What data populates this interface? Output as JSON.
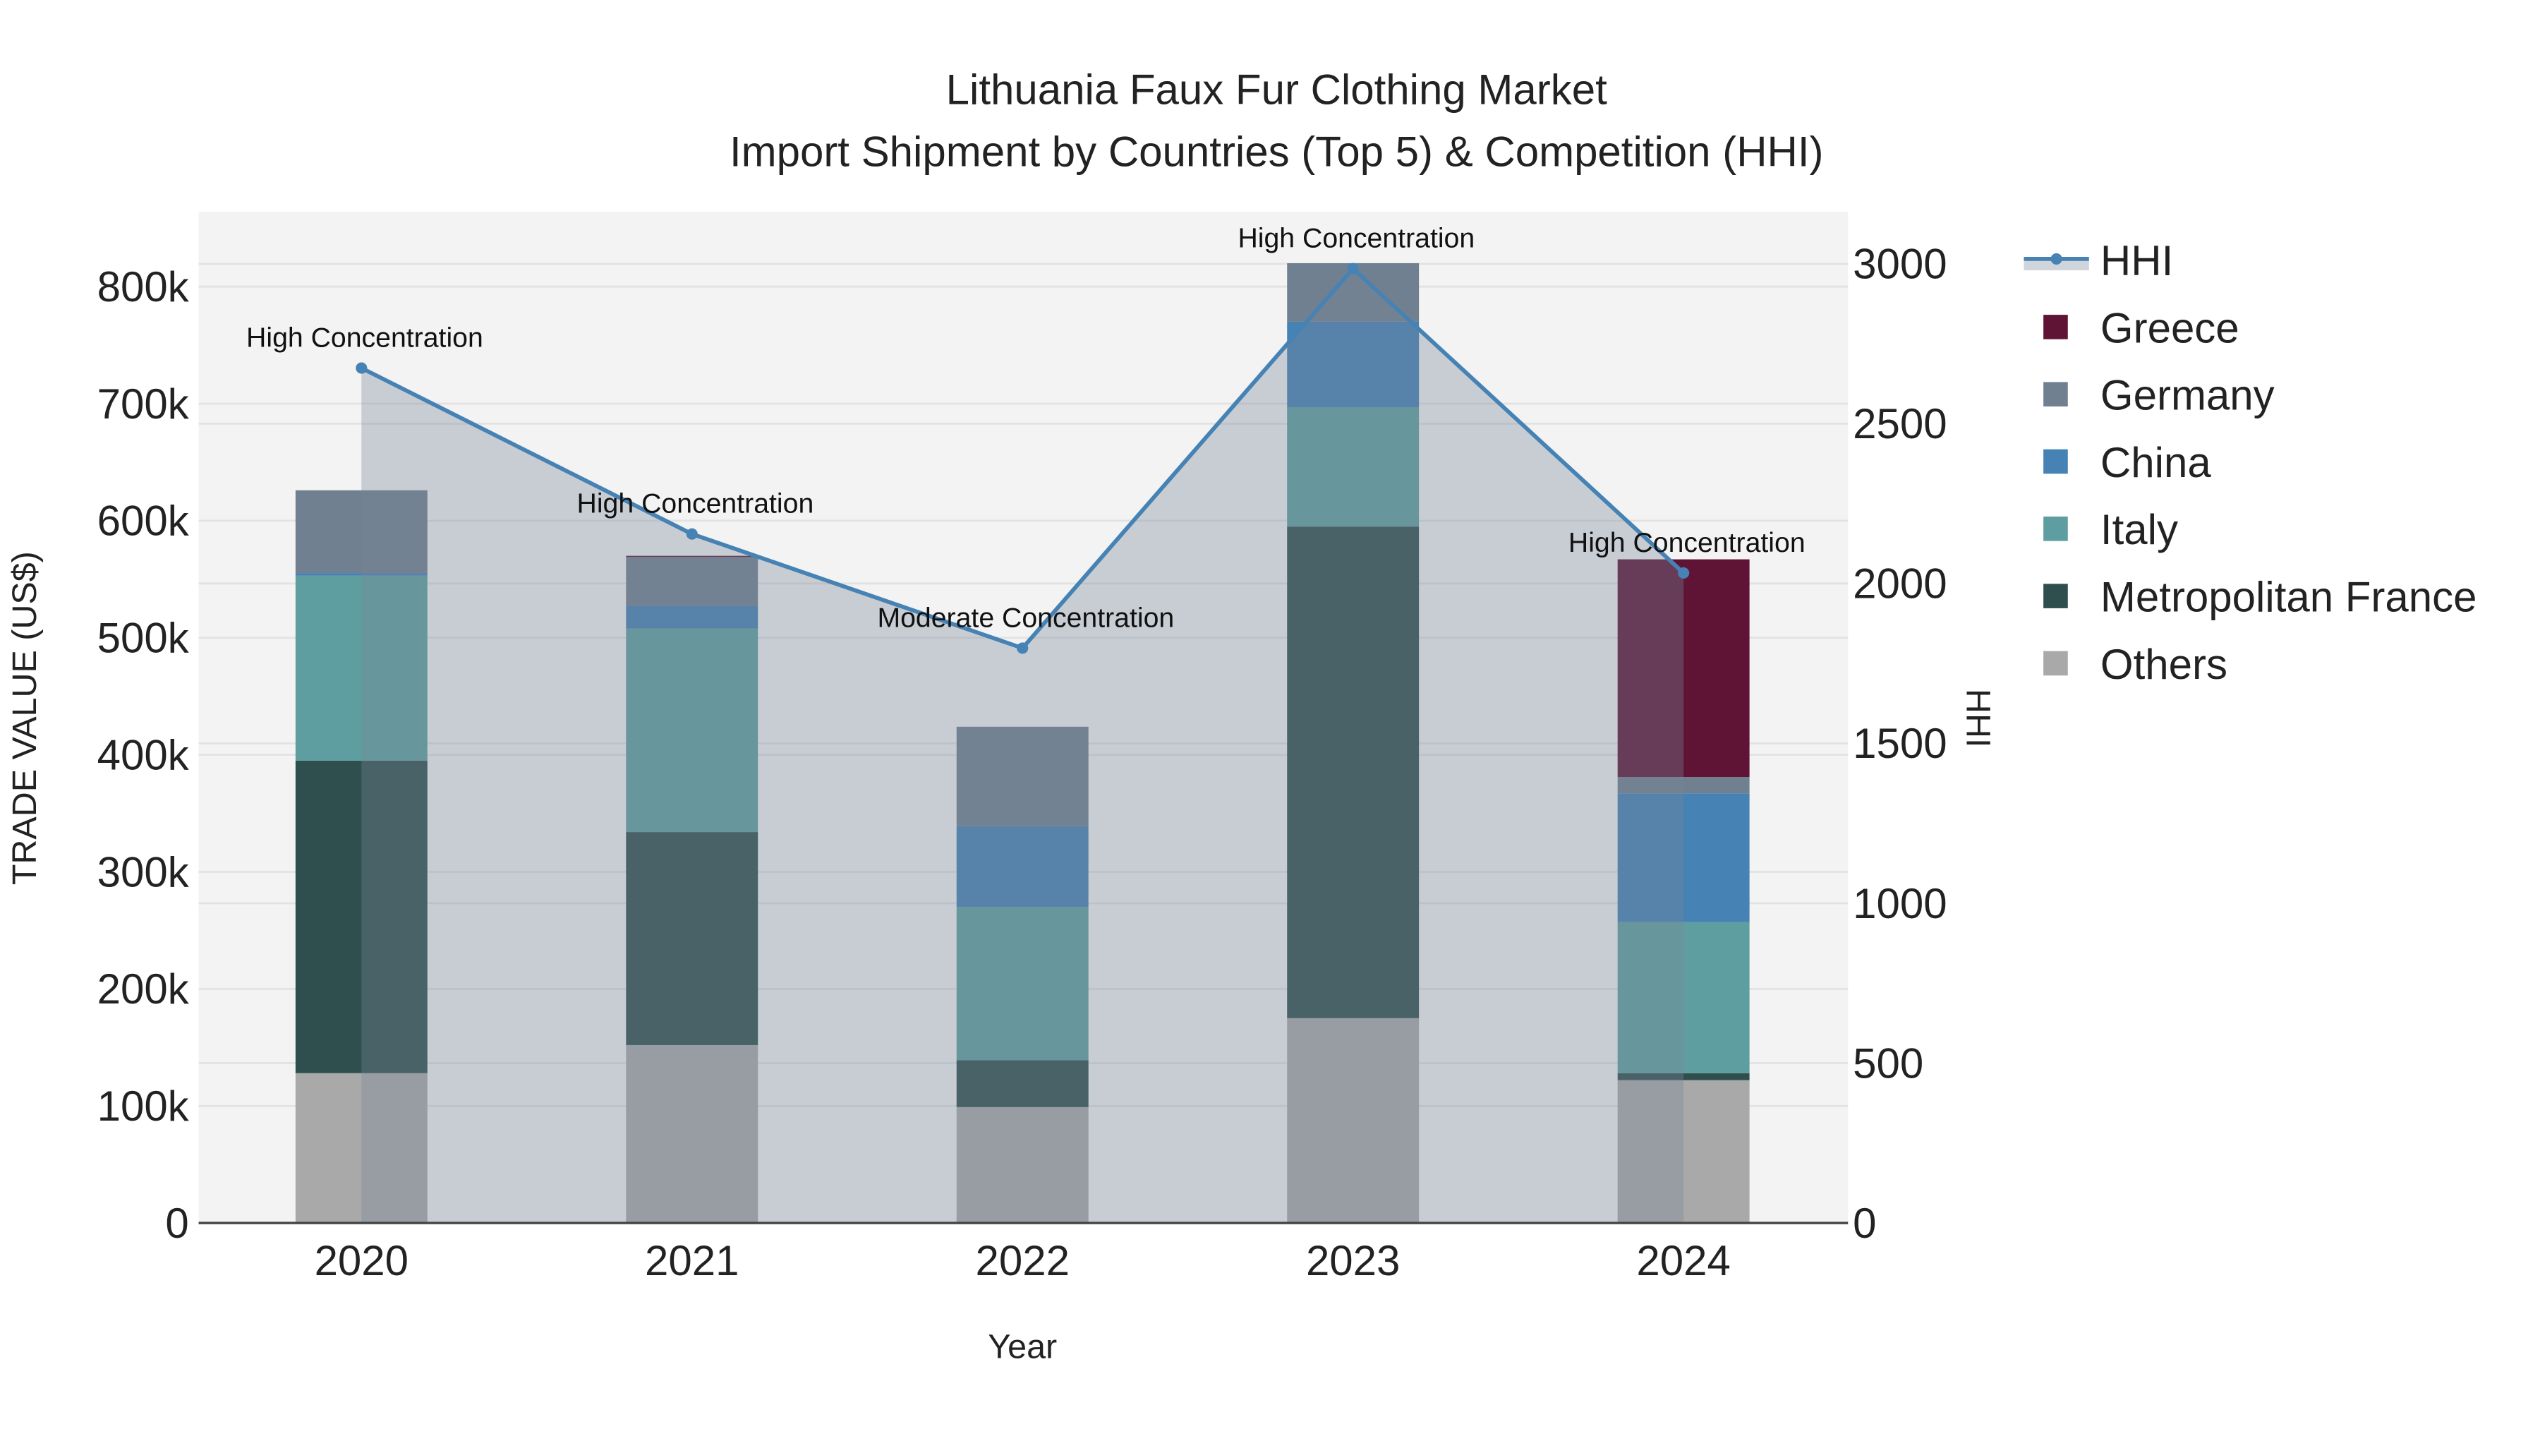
{
  "chart_data": {
    "type": "bar",
    "title": "Lithuania Faux Fur Clothing Market",
    "subtitle": "Import Shipment by Countries (Top 5) & Competition (HHI)",
    "xlabel": "Year",
    "ylabel": "TRADE VALUE (US$)",
    "y2label": "HHI",
    "categories": [
      "2020",
      "2021",
      "2022",
      "2023",
      "2024"
    ],
    "ylim": [
      0,
      860000
    ],
    "y2lim": [
      0,
      3150
    ],
    "yticks": [
      {
        "v": 0,
        "label": "0"
      },
      {
        "v": 100000,
        "label": "100k"
      },
      {
        "v": 200000,
        "label": "200k"
      },
      {
        "v": 300000,
        "label": "300k"
      },
      {
        "v": 400000,
        "label": "400k"
      },
      {
        "v": 500000,
        "label": "500k"
      },
      {
        "v": 600000,
        "label": "600k"
      },
      {
        "v": 700000,
        "label": "700k"
      },
      {
        "v": 800000,
        "label": "800k"
      }
    ],
    "y2ticks": [
      {
        "v": 0,
        "label": "0"
      },
      {
        "v": 500,
        "label": "500"
      },
      {
        "v": 1000,
        "label": "1000"
      },
      {
        "v": 1500,
        "label": "1500"
      },
      {
        "v": 2000,
        "label": "2000"
      },
      {
        "v": 2500,
        "label": "2500"
      },
      {
        "v": 3000,
        "label": "3000"
      }
    ],
    "stack_order": [
      "Others",
      "Metropolitan France",
      "Italy",
      "China",
      "Germany",
      "Greece"
    ],
    "series": [
      {
        "name": "Others",
        "color": "#a9a9a9",
        "values": [
          128000,
          152000,
          99000,
          175000,
          122000
        ]
      },
      {
        "name": "Metropolitan France",
        "color": "#2f4f4f",
        "values": [
          267000,
          182000,
          40000,
          420000,
          6000
        ]
      },
      {
        "name": "Italy",
        "color": "#5f9ea0",
        "values": [
          158000,
          174000,
          131000,
          102000,
          129000
        ]
      },
      {
        "name": "China",
        "color": "#4682b4",
        "values": [
          2000,
          19000,
          69000,
          73000,
          110000
        ]
      },
      {
        "name": "Germany",
        "color": "#708090",
        "values": [
          71000,
          42000,
          85000,
          50000,
          14000
        ]
      },
      {
        "name": "Greece",
        "color": "#5f1436",
        "values": [
          0,
          1000,
          0,
          0,
          186000
        ]
      }
    ],
    "hhi": {
      "name": "HHI",
      "color": "#4682b4",
      "values": [
        2674,
        2155,
        1798,
        2985,
        2033
      ],
      "annotations": [
        "High Concentration",
        "High Concentration",
        "Moderate Concentration",
        "High Concentration",
        "High Concentration"
      ]
    },
    "legend": [
      "HHI",
      "Greece",
      "Germany",
      "China",
      "Italy",
      "Metropolitan France",
      "Others"
    ],
    "legend_position": "right",
    "grid": true
  }
}
